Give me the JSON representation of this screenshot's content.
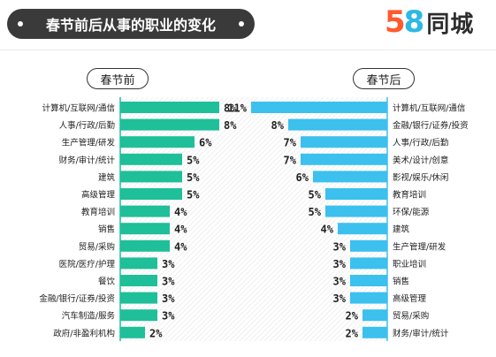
{
  "title": "春节前后从事的职业的变化",
  "brand": {
    "number_part_1": "5",
    "number_part_2": "8",
    "name": "同城"
  },
  "colors": {
    "left_bar": "#1fbf9a",
    "right_bar": "#3cc0ee",
    "brand_5": "#ff5a2e",
    "brand_8": "#2db8e6"
  },
  "chart_data": [
    {
      "type": "bar",
      "title": "春节前",
      "orientation": "horizontal",
      "categories": [
        "计算机/互联网/通信",
        "人事/行政/后勤",
        "生产管理/研发",
        "财务/审计/统计",
        "建筑",
        "高级管理",
        "教育培训",
        "销售",
        "贸易/采购",
        "医院/医疗/护理",
        "餐饮",
        "金融/银行/证券/投资",
        "汽车制造/服务",
        "政府/非盈利机构"
      ],
      "values": [
        8,
        8,
        6,
        5,
        5,
        5,
        4,
        4,
        4,
        3,
        3,
        3,
        3,
        2
      ],
      "labels": [
        "8%",
        "8%",
        "6%",
        "5%",
        "5%",
        "5%",
        "4%",
        "4%",
        "4%",
        "3%",
        "3%",
        "3%",
        "3%",
        "2%"
      ],
      "unit": "%"
    },
    {
      "type": "bar",
      "title": "春节后",
      "orientation": "horizontal",
      "categories": [
        "计算机/互联网/通信",
        "金融/银行/证券/投资",
        "人事/行政/后勤",
        "美术/设计/创意",
        "影视/娱乐/休闲",
        "教育培训",
        "环保/能源",
        "建筑",
        "生产管理/研发",
        "职业培训",
        "销售",
        "高级管理",
        "贸易/采购",
        "财务/审计/统计"
      ],
      "values": [
        11,
        8,
        7,
        7,
        6,
        5,
        5,
        4,
        3,
        3,
        3,
        3,
        2,
        2
      ],
      "labels": [
        "11%",
        "8%",
        "7%",
        "7%",
        "6%",
        "5%",
        "5%",
        "4%",
        "3%",
        "3%",
        "3%",
        "3%",
        "2%",
        "2%"
      ],
      "unit": "%"
    }
  ]
}
